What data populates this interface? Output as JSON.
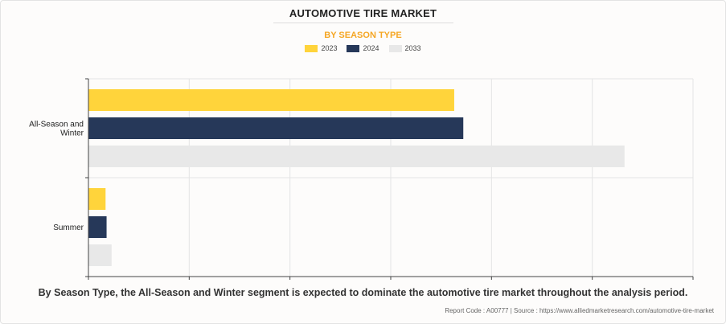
{
  "header": {
    "title": "AUTOMOTIVE TIRE MARKET",
    "subtitle": "BY SEASON TYPE"
  },
  "chart_data": {
    "type": "bar",
    "orientation": "horizontal",
    "categories": [
      "All-Season and Winter",
      "Summer"
    ],
    "category_lines": [
      [
        "All-Season and",
        "Winter"
      ],
      [
        "Summer"
      ]
    ],
    "series": [
      {
        "name": "2023",
        "color": "#ffd43b",
        "values": [
          36.3,
          1.7
        ]
      },
      {
        "name": "2024",
        "color": "#263859",
        "values": [
          37.2,
          1.8
        ]
      },
      {
        "name": "2033",
        "color": "#e8e8e8",
        "values": [
          53.2,
          2.3
        ]
      }
    ],
    "xlim": [
      0,
      60
    ],
    "grid": true,
    "legend": "top-center"
  },
  "footer": {
    "note": "By Season Type, the All-Season and Winter segment is expected to dominate the automotive tire market throughout the analysis period.",
    "source": "Report Code : A00777  |  Source : https://www.alliedmarketresearch.com/automotive-tire-market"
  }
}
